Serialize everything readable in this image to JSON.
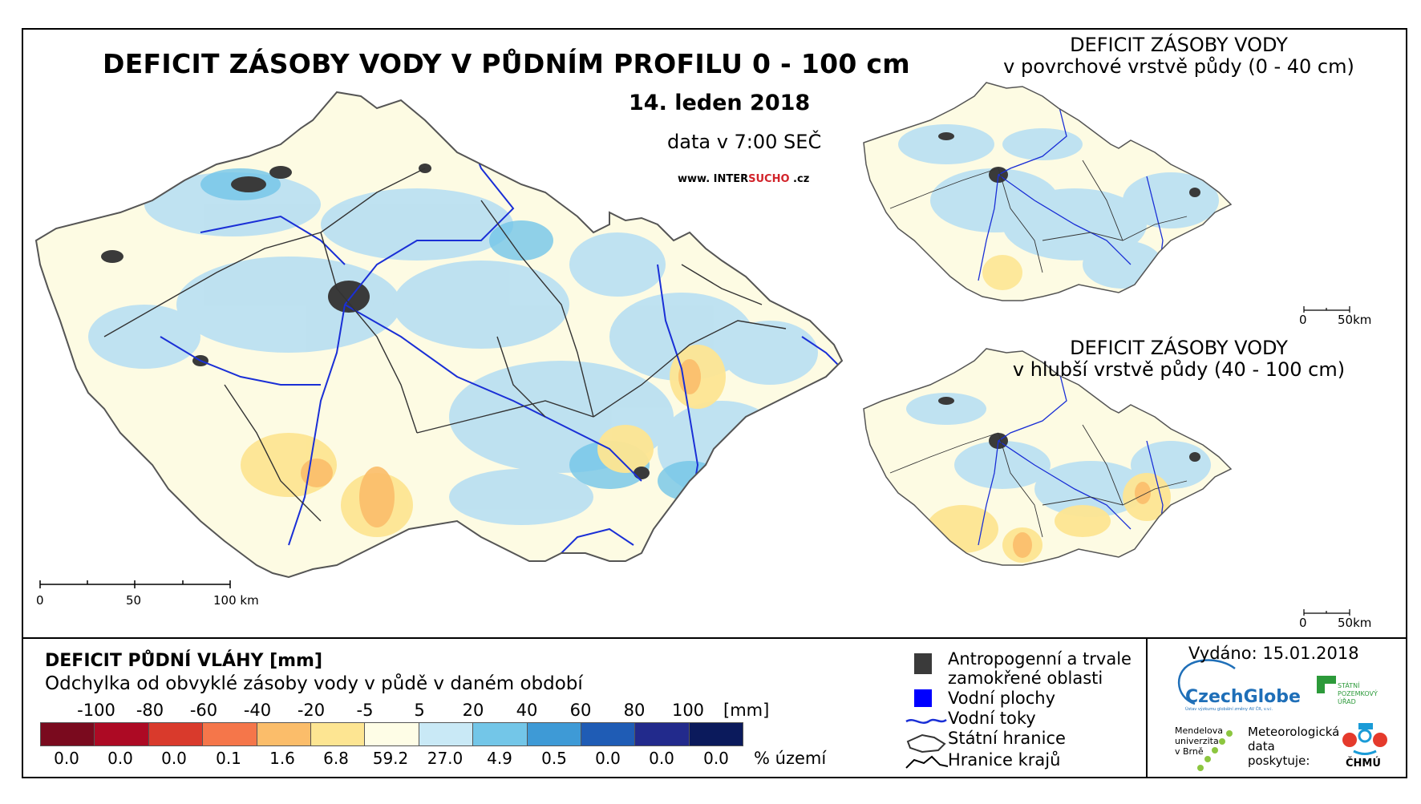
{
  "main_map": {
    "title": "DEFICIT ZÁSOBY VODY V PŮDNÍM PROFILU 0 - 100 cm",
    "date": "14. leden 2018",
    "time": "data v 7:00 SEČ",
    "website_prefix": "www. INTER",
    "website_brand": "SUCHO",
    "website_suffix": " .cz",
    "scale_labels": [
      "0",
      "50",
      "100 km"
    ]
  },
  "inset_top": {
    "title_line1": "DEFICIT ZÁSOBY VODY",
    "title_line2": "v povrchové vrstvě půdy (0 - 40 cm)",
    "scale_labels": [
      "0",
      "50km"
    ]
  },
  "inset_bottom": {
    "title_line1": "DEFICIT ZÁSOBY VODY",
    "title_line2": "v hlubší vrstvě půdy (40 - 100 cm)",
    "scale_labels": [
      "0",
      "50km"
    ]
  },
  "legend": {
    "title": "DEFICIT PŮDNÍ VLÁHY [mm]",
    "subtitle": "Odchylka od obvyklé zásoby vody v půdě v daném období",
    "ticks": [
      "-100",
      "-80",
      "-60",
      "-40",
      "-20",
      "-5",
      "5",
      "20",
      "40",
      "60",
      "80",
      "100"
    ],
    "unit": "[mm]",
    "classes": [
      {
        "color": "#7a0a1e",
        "percent": "0.0"
      },
      {
        "color": "#ad0a24",
        "percent": "0.0"
      },
      {
        "color": "#d93a2c",
        "percent": "0.0"
      },
      {
        "color": "#f5764a",
        "percent": "0.1"
      },
      {
        "color": "#fbbd6a",
        "percent": "1.6"
      },
      {
        "color": "#fde592",
        "percent": "6.8"
      },
      {
        "color": "#fefde6",
        "percent": "59.2"
      },
      {
        "color": "#c9e9f6",
        "percent": "27.0"
      },
      {
        "color": "#73c6e8",
        "percent": "4.9"
      },
      {
        "color": "#3e9ad6",
        "percent": "0.5"
      },
      {
        "color": "#1f5cb5",
        "percent": "0.0"
      },
      {
        "color": "#222a8c",
        "percent": "0.0"
      },
      {
        "color": "#0b1a5c",
        "percent": "0.0"
      }
    ],
    "percent_unit": "% území"
  },
  "key": {
    "anthropogenic_line1": "Antropogenní a trvale",
    "anthropogenic_line2": "zamokřené oblasti",
    "water_bodies": "Vodní plochy",
    "rivers": "Vodní toky",
    "state_border": "Státní hranice",
    "region_border": "Hranice krajů"
  },
  "credits": {
    "issued": "Vydáno: 15.01.2018",
    "czechglobe": "CzechGlobe",
    "czechglobe_sub": "Ústav výzkumu globální změny AV ČR, v.v.i.",
    "spu_line1": "STÁTNÍ",
    "spu_line2": "POZEMKOVÝ",
    "spu_line3": "ÚŘAD",
    "mendel_line1": "Mendelova",
    "mendel_line2": "univerzita",
    "mendel_line3": "v Brně",
    "met_line1": "Meteorologická",
    "met_line2": "data",
    "met_line3": "poskytuje:",
    "chmu": "ČHMÚ"
  },
  "colors": {
    "river": "#1a2fd6",
    "urban": "#3a3a3a",
    "land": "#fdfbe3",
    "wet": "#b8dff2"
  }
}
